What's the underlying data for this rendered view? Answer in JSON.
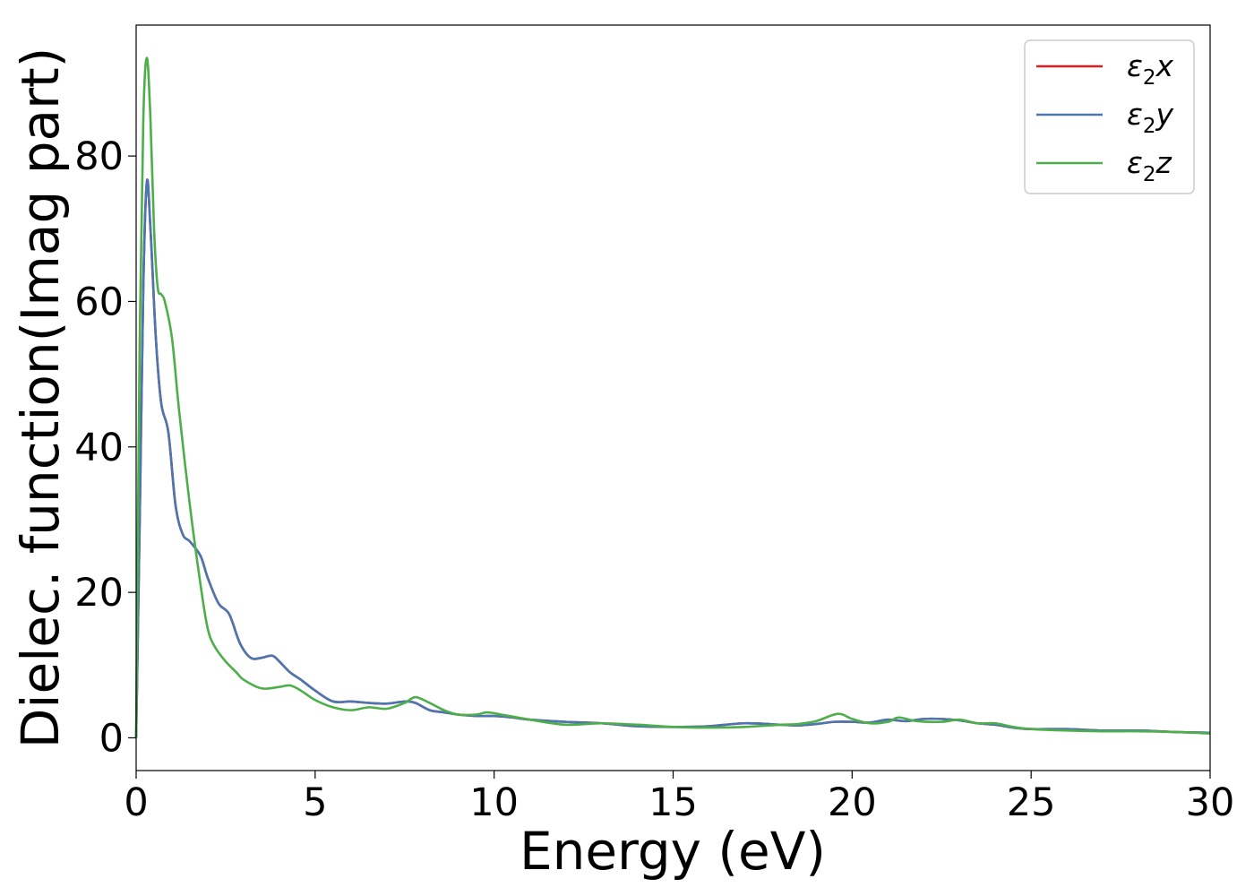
{
  "chart_data": {
    "type": "line",
    "title": "",
    "xlabel": "Energy (eV)",
    "ylabel": "Dielec. function(Imag part)",
    "xlim": [
      0,
      30
    ],
    "ylim": [
      -4.5,
      98
    ],
    "xticks": [
      0,
      5,
      10,
      15,
      20,
      25,
      30
    ],
    "yticks": [
      0,
      20,
      40,
      60,
      80
    ],
    "grid": false,
    "legend_position": "top-right",
    "series": [
      {
        "name": "ε2x",
        "legend_main": "ε",
        "legend_sub": "2",
        "legend_suffix": "x",
        "color": "#e41a1c",
        "x": [
          0,
          0.1,
          0.2,
          0.3,
          0.4,
          0.55,
          0.7,
          0.9,
          1.1,
          1.3,
          1.5,
          1.8,
          2.0,
          2.3,
          2.6,
          2.9,
          3.2,
          3.5,
          3.8,
          4.0,
          4.3,
          4.6,
          5.0,
          5.5,
          6.0,
          6.5,
          7.0,
          7.5,
          7.8,
          8.2,
          8.6,
          9.0,
          9.5,
          10.0,
          10.5,
          11.0,
          12.0,
          13.0,
          14.0,
          15.0,
          16.0,
          17.0,
          18.0,
          18.5,
          19.0,
          19.5,
          20.0,
          20.5,
          21.0,
          21.5,
          22.0,
          22.5,
          23.0,
          23.5,
          24.0,
          24.5,
          25.0,
          26.0,
          27.0,
          28.0,
          29.0,
          30.0
        ],
        "y": [
          0,
          30,
          62,
          76.5,
          70,
          55,
          46,
          42,
          32,
          28,
          27,
          25,
          22,
          18.5,
          17,
          13,
          11,
          11,
          11.3,
          10.5,
          9,
          8,
          6.5,
          5,
          5,
          4.8,
          4.7,
          5,
          4.8,
          3.8,
          3.5,
          3.2,
          3,
          3,
          2.8,
          2.5,
          2.2,
          2,
          1.6,
          1.5,
          1.6,
          2,
          1.8,
          1.7,
          1.9,
          2.2,
          2.2,
          2.1,
          2.5,
          2.3,
          2.6,
          2.6,
          2.4,
          2,
          1.8,
          1.4,
          1.2,
          1.2,
          1,
          1,
          0.8,
          0.7
        ]
      },
      {
        "name": "ε2y",
        "legend_main": "ε",
        "legend_sub": "2",
        "legend_suffix": "y",
        "color": "#4a76b2",
        "x": [
          0,
          0.1,
          0.2,
          0.3,
          0.4,
          0.55,
          0.7,
          0.9,
          1.1,
          1.3,
          1.5,
          1.8,
          2.0,
          2.3,
          2.6,
          2.9,
          3.2,
          3.5,
          3.8,
          4.0,
          4.3,
          4.6,
          5.0,
          5.5,
          6.0,
          6.5,
          7.0,
          7.5,
          7.8,
          8.2,
          8.6,
          9.0,
          9.5,
          10.0,
          10.5,
          11.0,
          12.0,
          13.0,
          14.0,
          15.0,
          16.0,
          17.0,
          18.0,
          18.5,
          19.0,
          19.5,
          20.0,
          20.5,
          21.0,
          21.5,
          22.0,
          22.5,
          23.0,
          23.5,
          24.0,
          24.5,
          25.0,
          26.0,
          27.0,
          28.0,
          29.0,
          30.0
        ],
        "y": [
          0,
          30,
          62,
          76.5,
          70,
          55,
          46,
          42,
          32,
          28,
          27,
          25,
          22,
          18.5,
          17,
          13,
          11,
          11,
          11.3,
          10.5,
          9,
          8,
          6.5,
          5,
          5,
          4.8,
          4.7,
          5,
          4.8,
          3.8,
          3.5,
          3.2,
          3,
          3,
          2.8,
          2.5,
          2.2,
          2,
          1.6,
          1.5,
          1.6,
          2,
          1.8,
          1.7,
          1.9,
          2.2,
          2.2,
          2.1,
          2.5,
          2.3,
          2.6,
          2.6,
          2.4,
          2,
          1.8,
          1.4,
          1.2,
          1.2,
          1,
          1,
          0.8,
          0.7
        ]
      },
      {
        "name": "ε2z",
        "legend_main": "ε",
        "legend_sub": "2",
        "legend_suffix": "z",
        "color": "#4daf4a",
        "x": [
          0,
          0.1,
          0.2,
          0.3,
          0.4,
          0.5,
          0.6,
          0.7,
          0.8,
          1.0,
          1.2,
          1.5,
          1.8,
          2.0,
          2.2,
          2.5,
          2.8,
          3.0,
          3.5,
          4.0,
          4.3,
          4.6,
          5.0,
          5.5,
          6.0,
          6.5,
          7.0,
          7.5,
          7.8,
          8.2,
          8.6,
          9.0,
          9.5,
          9.8,
          10.2,
          11.0,
          12.0,
          13.0,
          14.0,
          15.0,
          16.0,
          17.0,
          18.0,
          18.5,
          19.0,
          19.6,
          20.0,
          20.5,
          21.0,
          21.3,
          21.8,
          22.5,
          23.0,
          23.5,
          24.0,
          24.5,
          25.0,
          26.0,
          27.0,
          28.0,
          29.0,
          30.0
        ],
        "y": [
          0,
          55,
          85,
          93.5,
          85,
          70,
          62,
          61,
          60,
          55,
          45,
          32,
          21,
          15,
          12.5,
          10.5,
          9,
          8,
          6.8,
          7,
          7.2,
          6.5,
          5.2,
          4.2,
          3.8,
          4.2,
          4,
          4.8,
          5.6,
          4.8,
          3.8,
          3.2,
          3.2,
          3.5,
          3.2,
          2.5,
          1.8,
          2,
          1.8,
          1.5,
          1.4,
          1.5,
          1.8,
          1.9,
          2.3,
          3.3,
          2.6,
          2,
          2.2,
          2.8,
          2.3,
          2.2,
          2.5,
          2,
          2,
          1.5,
          1.2,
          1,
          0.9,
          0.9,
          0.8,
          0.6
        ]
      }
    ]
  }
}
